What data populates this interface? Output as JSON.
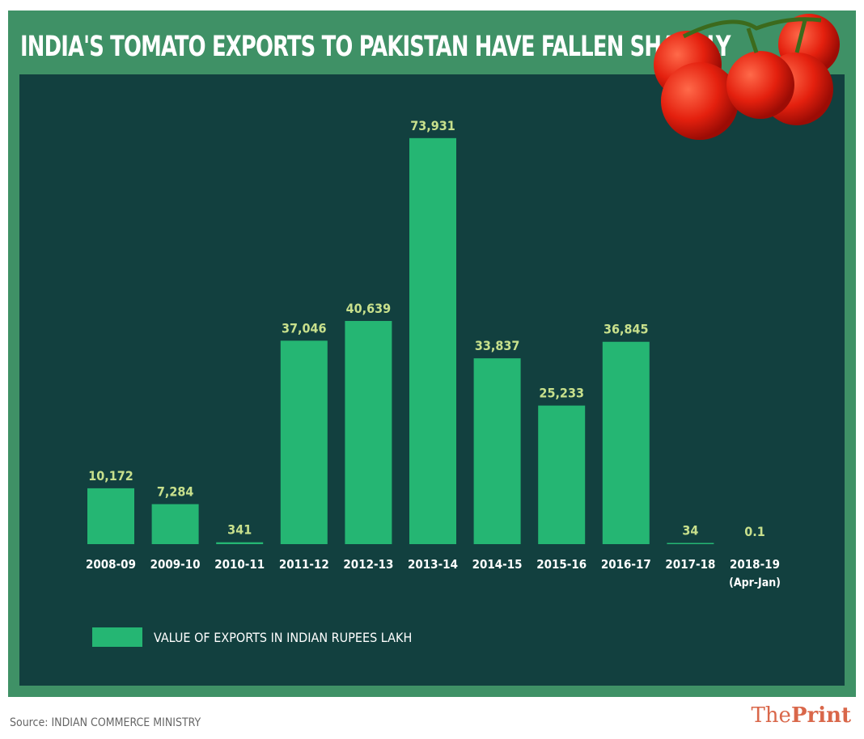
{
  "chart_data": {
    "type": "bar",
    "title": "INDIA'S TOMATO EXPORTS TO PAKISTAN HAVE FALLEN SHARPLY",
    "categories": [
      "2008-09",
      "2009-10",
      "2010-11",
      "2011-12",
      "2012-13",
      "2013-14",
      "2014-15",
      "2015-16",
      "2016-17",
      "2017-18",
      "2018-19"
    ],
    "category_sublabels": [
      "",
      "",
      "",
      "",
      "",
      "",
      "",
      "",
      "",
      "",
      "(Apr-Jan)"
    ],
    "values": [
      10172,
      7284,
      341,
      37046,
      40639,
      73931,
      33837,
      25233,
      36845,
      34,
      0.1
    ],
    "value_labels": [
      "10,172",
      "7,284",
      "341",
      "37,046",
      "40,639",
      "73,931",
      "33,837",
      "25,233",
      "36,845",
      "34",
      "0.1"
    ],
    "series": [
      {
        "name": "VALUE OF EXPORTS IN INDIAN RUPEES LAKH"
      }
    ],
    "ylim": [
      0,
      79500
    ],
    "grid": false,
    "legend": "bottom-left",
    "colors": {
      "bar": "#25b673",
      "label": "#c8e08c",
      "panel": "#12403f",
      "frame": "#3f9166"
    }
  },
  "source": "Source: INDIAN COMMERCE MINISTRY",
  "brand": {
    "the": "The",
    "print": "Print"
  }
}
